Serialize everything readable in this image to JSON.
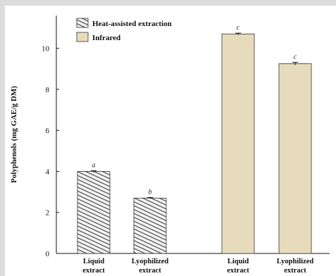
{
  "chart_data": {
    "type": "bar",
    "ylabel": "Polyphenols (mg GAE/g DM)",
    "xlabel": "",
    "ylim": [
      0,
      11.6
    ],
    "yticks": [
      0,
      2,
      4,
      6,
      8,
      10
    ],
    "legend_position": "top-left",
    "groups": [
      {
        "series": "Heat-assisted extraction",
        "bars": [
          {
            "category": [
              "Liquid",
              "extract"
            ],
            "value": 4.0,
            "error": 0.03,
            "sig": "a"
          },
          {
            "category": [
              "Lyophilized",
              "extract"
            ],
            "value": 2.7,
            "error": 0.03,
            "sig": "b"
          }
        ]
      },
      {
        "series": "Infrared",
        "bars": [
          {
            "category": [
              "Liquid",
              "extract"
            ],
            "value": 10.7,
            "error": 0.04,
            "sig": "c"
          },
          {
            "category": [
              "Lyophilized",
              "extract"
            ],
            "value": 9.25,
            "error": 0.07,
            "sig": "c"
          }
        ]
      }
    ],
    "series": [
      {
        "name": "Heat-assisted extraction",
        "color": "#777777",
        "pattern": "diagonal-hatch"
      },
      {
        "name": "Infrared",
        "color": "#e6dcbb",
        "pattern": "solid"
      }
    ]
  }
}
